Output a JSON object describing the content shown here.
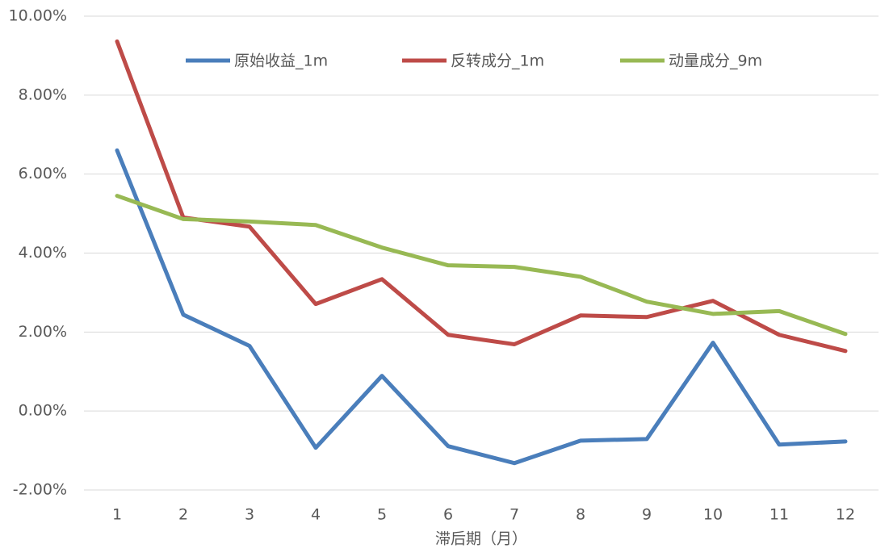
{
  "chart_data": {
    "type": "line",
    "x_label": "滞后期（月）",
    "categories": [
      "1",
      "2",
      "3",
      "4",
      "5",
      "6",
      "7",
      "8",
      "9",
      "10",
      "11",
      "12"
    ],
    "series": [
      {
        "name": "原始收益_1m",
        "color": "#4a7ebb",
        "values": [
          6.6,
          2.44,
          1.65,
          -0.93,
          0.89,
          -0.89,
          -1.32,
          -0.75,
          -0.71,
          1.73,
          -0.85,
          -0.77
        ]
      },
      {
        "name": "反转成分_1m",
        "color": "#be4b48",
        "values": [
          9.36,
          4.9,
          4.67,
          2.71,
          3.34,
          1.93,
          1.69,
          2.42,
          2.38,
          2.79,
          1.93,
          1.52
        ]
      },
      {
        "name": "动量成分_9m",
        "color": "#98b954",
        "values": [
          5.45,
          4.86,
          4.8,
          4.71,
          4.14,
          3.69,
          3.65,
          3.4,
          2.77,
          2.46,
          2.53,
          1.95
        ]
      }
    ],
    "ylim": [
      -2,
      10
    ],
    "yticks": [
      {
        "value": -2,
        "label": "-2.00%"
      },
      {
        "value": 0,
        "label": "0.00%"
      },
      {
        "value": 2,
        "label": "2.00%"
      },
      {
        "value": 4,
        "label": "4.00%"
      },
      {
        "value": 6,
        "label": "6.00%"
      },
      {
        "value": 8,
        "label": "8.00%"
      },
      {
        "value": 10,
        "label": "10.00%"
      }
    ],
    "grid": true,
    "legend": "top"
  }
}
